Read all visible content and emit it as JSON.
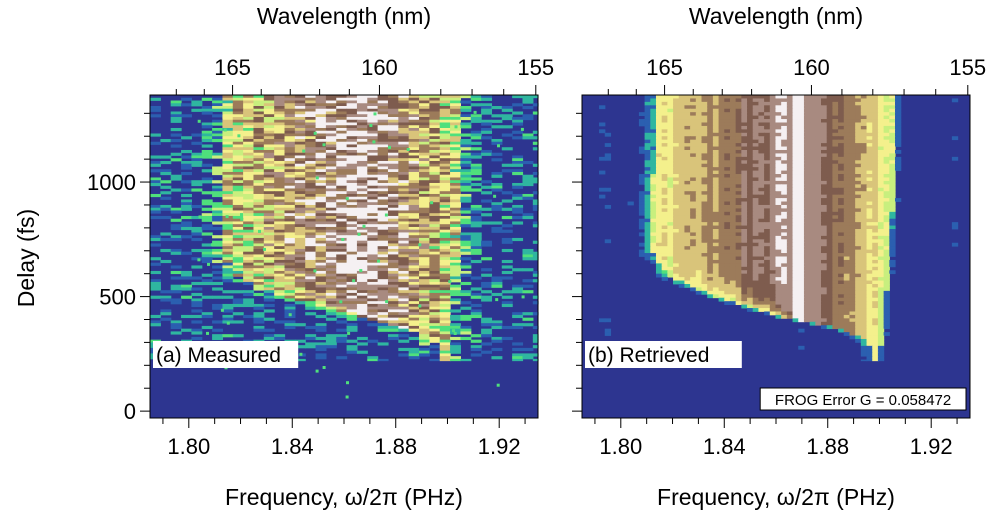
{
  "chart_data": {
    "type": "heatmap",
    "panels": [
      {
        "id": "measured",
        "label": "(a) Measured",
        "top_axis_title": "Wavelength (nm)",
        "top_ticks": [
          "165",
          "160",
          "155"
        ],
        "top_tick_values_nm": [
          165,
          160,
          155
        ],
        "x_title": "Frequency, ω/2π (PHz)",
        "x_ticks": [
          "1.80",
          "1.84",
          "1.88",
          "1.92"
        ],
        "x_tick_values": [
          1.8,
          1.84,
          1.88,
          1.92
        ],
        "xlim": [
          1.785,
          1.935
        ],
        "y_title": "Delay (fs)",
        "y_ticks": [
          "0",
          "500",
          "1000"
        ],
        "y_tick_values": [
          0,
          500,
          1000
        ],
        "ylim": [
          -30,
          1380
        ],
        "noisy": true,
        "annotation": ""
      },
      {
        "id": "retrieved",
        "label": "(b) Retrieved",
        "top_axis_title": "Wavelength (nm)",
        "top_ticks": [
          "165",
          "160",
          "155"
        ],
        "top_tick_values_nm": [
          165,
          160,
          155
        ],
        "x_title": "Frequency, ω/2π (PHz)",
        "x_ticks": [
          "1.80",
          "1.84",
          "1.88",
          "1.92"
        ],
        "x_tick_values": [
          1.8,
          1.84,
          1.88,
          1.92
        ],
        "xlim": [
          1.785,
          1.935
        ],
        "y_title": "",
        "y_ticks": [],
        "y_tick_values": [
          0,
          500,
          1000
        ],
        "ylim": [
          -30,
          1380
        ],
        "noisy": false,
        "annotation": "FROG Error G = 0.058472"
      }
    ],
    "trace_edges": {
      "left_edge_by_delay": [
        [
          1380,
          1.813
        ],
        [
          700,
          1.812
        ],
        [
          600,
          1.818
        ],
        [
          500,
          1.838
        ],
        [
          420,
          1.862
        ],
        [
          380,
          1.88
        ],
        [
          330,
          1.893
        ],
        [
          260,
          1.898
        ]
      ],
      "right_edge_by_delay": [
        [
          1380,
          1.906
        ],
        [
          900,
          1.905
        ],
        [
          600,
          1.903
        ],
        [
          400,
          1.902
        ],
        [
          260,
          1.9
        ]
      ],
      "peak_frequency": 1.868,
      "dark_band": [
        1.852,
        1.884
      ]
    },
    "colormap": [
      "#2d3590",
      "#2b5fb0",
      "#2fb6a0",
      "#4fe07c",
      "#c8ef7e",
      "#f4f08c",
      "#d9c47a",
      "#9c7b5a",
      "#7e5c4e",
      "#a88a80",
      "#f5f0f2"
    ],
    "grid": false
  }
}
